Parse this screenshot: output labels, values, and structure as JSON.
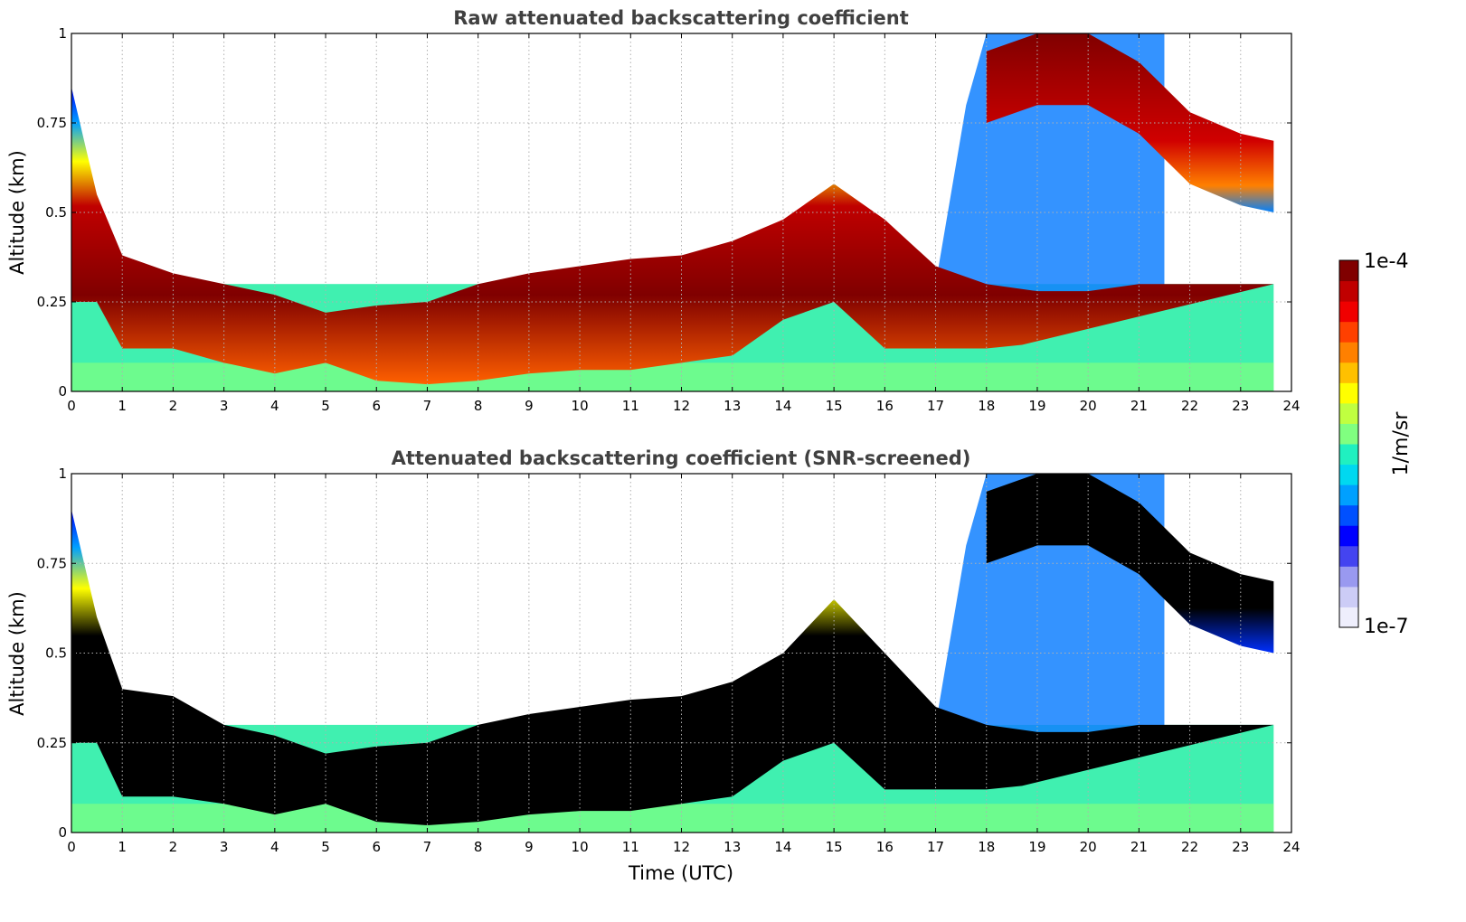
{
  "chart_data": [
    {
      "type": "heatmap",
      "title": "Raw attenuated backscattering coefficient",
      "xlabel": "",
      "ylabel": "Altitude (km)",
      "xlim": [
        0,
        24
      ],
      "ylim": [
        0,
        1
      ],
      "x_ticks": [
        "0",
        "1",
        "2",
        "3",
        "4",
        "5",
        "6",
        "7",
        "8",
        "9",
        "10",
        "11",
        "12",
        "13",
        "14",
        "15",
        "16",
        "17",
        "18",
        "19",
        "20",
        "21",
        "22",
        "23",
        "24"
      ],
      "y_ticks": [
        "0",
        "0.25",
        "0.5",
        "0.75",
        "1"
      ],
      "grid": true,
      "data_end_hour": 23.65,
      "z_scale": "log",
      "colormap": "jet",
      "cloud_top_km": [
        [
          0,
          0.85
        ],
        [
          0.5,
          0.55
        ],
        [
          1,
          0.38
        ],
        [
          2,
          0.33
        ],
        [
          3,
          0.3
        ],
        [
          4,
          0.27
        ],
        [
          5,
          0.22
        ],
        [
          6,
          0.24
        ],
        [
          7,
          0.25
        ],
        [
          8,
          0.3
        ],
        [
          9,
          0.33
        ],
        [
          10,
          0.35
        ],
        [
          11,
          0.37
        ],
        [
          12,
          0.38
        ],
        [
          13,
          0.42
        ],
        [
          14,
          0.48
        ],
        [
          15,
          0.58
        ],
        [
          16,
          0.48
        ],
        [
          17,
          0.35
        ],
        [
          18,
          0.3
        ],
        [
          19,
          0.28
        ],
        [
          20,
          0.28
        ],
        [
          21,
          0.3
        ],
        [
          22,
          0.3
        ],
        [
          23,
          0.3
        ],
        [
          23.65,
          0.3
        ]
      ],
      "cloud_base_km": [
        [
          0,
          0.25
        ],
        [
          0.5,
          0.25
        ],
        [
          1,
          0.12
        ],
        [
          2,
          0.12
        ],
        [
          3,
          0.08
        ],
        [
          4,
          0.05
        ],
        [
          5,
          0.08
        ],
        [
          6,
          0.03
        ],
        [
          7,
          0.02
        ],
        [
          8,
          0.03
        ],
        [
          9,
          0.05
        ],
        [
          10,
          0.06
        ],
        [
          11,
          0.06
        ],
        [
          12,
          0.08
        ],
        [
          13,
          0.1
        ],
        [
          14,
          0.2
        ],
        [
          15,
          0.25
        ],
        [
          16,
          0.12
        ],
        [
          17,
          0.12
        ],
        [
          18,
          0.12
        ],
        [
          18.7,
          0.13
        ]
      ],
      "upper_cloud_km": [
        [
          18,
          0.95
        ],
        [
          19,
          1.0
        ],
        [
          20,
          1.0
        ],
        [
          21,
          0.92
        ],
        [
          22,
          0.78
        ],
        [
          23,
          0.72
        ],
        [
          23.65,
          0.7
        ]
      ]
    },
    {
      "type": "heatmap",
      "title": "Attenuated backscattering coefficient (SNR-screened)",
      "xlabel": "Time (UTC)",
      "ylabel": "Altitude (km)",
      "xlim": [
        0,
        24
      ],
      "ylim": [
        0,
        1
      ],
      "x_ticks": [
        "0",
        "1",
        "2",
        "3",
        "4",
        "5",
        "6",
        "7",
        "8",
        "9",
        "10",
        "11",
        "12",
        "13",
        "14",
        "15",
        "16",
        "17",
        "18",
        "19",
        "20",
        "21",
        "22",
        "23",
        "24"
      ],
      "y_ticks": [
        "0",
        "0.25",
        "0.5",
        "0.75",
        "1"
      ],
      "grid": true,
      "data_end_hour": 23.65,
      "z_scale": "log",
      "colormap": "jet",
      "saturated_color": "#000000",
      "cloud_top_km": [
        [
          0,
          0.9
        ],
        [
          0.5,
          0.6
        ],
        [
          1,
          0.4
        ],
        [
          2,
          0.38
        ],
        [
          3,
          0.3
        ],
        [
          4,
          0.27
        ],
        [
          5,
          0.22
        ],
        [
          6,
          0.24
        ],
        [
          7,
          0.25
        ],
        [
          8,
          0.3
        ],
        [
          9,
          0.33
        ],
        [
          10,
          0.35
        ],
        [
          11,
          0.37
        ],
        [
          12,
          0.38
        ],
        [
          13,
          0.42
        ],
        [
          14,
          0.5
        ],
        [
          15,
          0.65
        ],
        [
          16,
          0.5
        ],
        [
          17,
          0.35
        ],
        [
          18,
          0.3
        ],
        [
          19,
          0.28
        ],
        [
          20,
          0.28
        ],
        [
          21,
          0.3
        ],
        [
          22,
          0.3
        ],
        [
          23,
          0.3
        ],
        [
          23.65,
          0.3
        ]
      ],
      "cloud_base_km": [
        [
          0,
          0.25
        ],
        [
          0.5,
          0.25
        ],
        [
          1,
          0.1
        ],
        [
          2,
          0.1
        ],
        [
          3,
          0.08
        ],
        [
          4,
          0.05
        ],
        [
          5,
          0.08
        ],
        [
          6,
          0.03
        ],
        [
          7,
          0.02
        ],
        [
          8,
          0.03
        ],
        [
          9,
          0.05
        ],
        [
          10,
          0.06
        ],
        [
          11,
          0.06
        ],
        [
          12,
          0.08
        ],
        [
          13,
          0.1
        ],
        [
          14,
          0.2
        ],
        [
          15,
          0.25
        ],
        [
          16,
          0.12
        ],
        [
          17,
          0.12
        ],
        [
          18,
          0.12
        ],
        [
          18.7,
          0.13
        ]
      ],
      "upper_cloud_km": [
        [
          18,
          0.95
        ],
        [
          19,
          1.0
        ],
        [
          20,
          1.0
        ],
        [
          21,
          0.92
        ],
        [
          22,
          0.78
        ],
        [
          23,
          0.72
        ],
        [
          23.65,
          0.7
        ]
      ]
    }
  ],
  "colorbar": {
    "label": "1/m/sr",
    "max_label": "1e-4",
    "min_label": "1e-7",
    "colors": [
      "#eeeefc",
      "#ccccf6",
      "#9999f0",
      "#4444f0",
      "#0000ff",
      "#0050ff",
      "#00a0ff",
      "#00d8f0",
      "#20f0c0",
      "#80ff80",
      "#c0ff40",
      "#ffff00",
      "#ffc000",
      "#ff8000",
      "#ff4000",
      "#f00000",
      "#c00000",
      "#800000"
    ]
  }
}
